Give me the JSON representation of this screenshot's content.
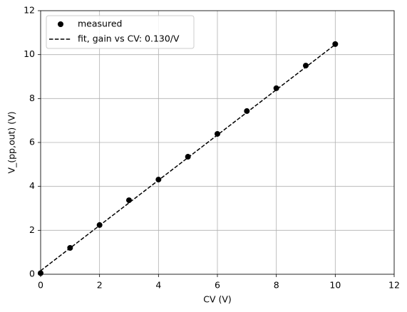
{
  "chart_data": {
    "type": "line",
    "xlabel": "CV (V)",
    "ylabel": "V_(pp,out) (V)",
    "xlim": [
      0,
      12
    ],
    "ylim": [
      0,
      12
    ],
    "xticks": [
      0,
      2,
      4,
      6,
      8,
      10,
      12
    ],
    "yticks": [
      0,
      2,
      4,
      6,
      8,
      10,
      12
    ],
    "grid": true,
    "legend": "upper left",
    "series": [
      {
        "name": "measured",
        "color": "#000000",
        "marker": "o",
        "linestyle": "none",
        "x": [
          0,
          1,
          2,
          3,
          4,
          5,
          6,
          7,
          8,
          9,
          10
        ],
        "values": [
          0.05,
          1.2,
          2.24,
          3.37,
          4.31,
          5.35,
          6.39,
          7.43,
          8.47,
          9.5,
          10.48
        ]
      },
      {
        "name": "fit, gain vs CV: 0.130/V",
        "color": "#000000",
        "marker": "none",
        "linestyle": "dashed",
        "x": [
          0,
          10
        ],
        "values": [
          0.16,
          10.46
        ]
      }
    ]
  }
}
